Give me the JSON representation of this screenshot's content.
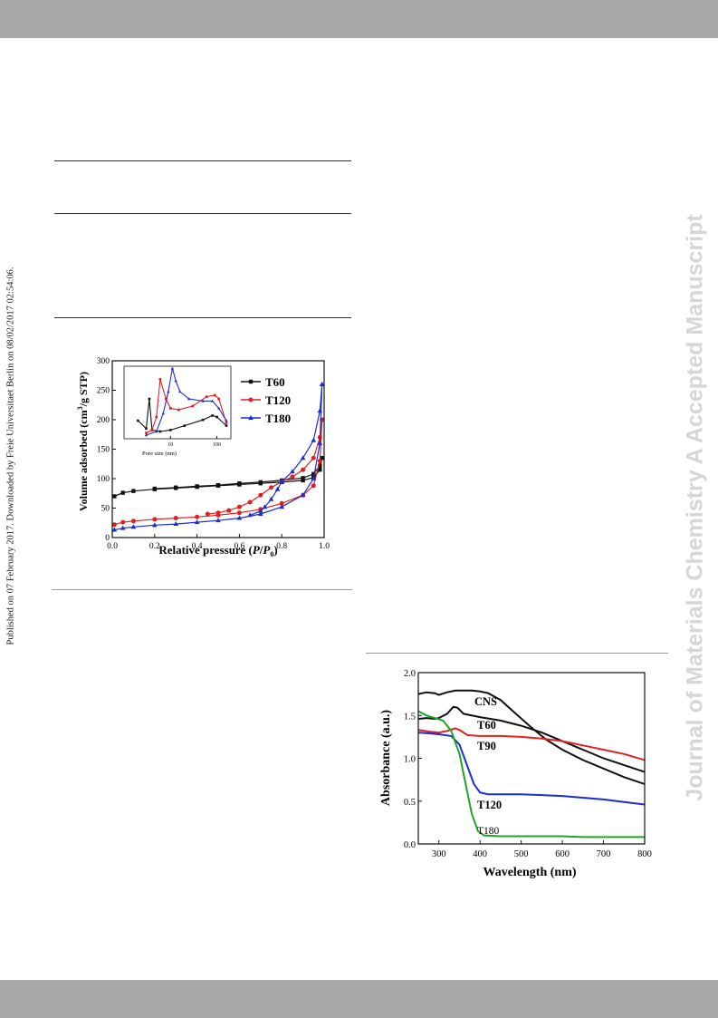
{
  "page": {
    "watermark": "Journal of Materials Chemistry A Accepted Manuscript",
    "side_note": "Published on 07 February 2017. Downloaded by Freie Universitaet Berlin on 08/02/2017 02:54:06."
  },
  "chart_data": [
    {
      "type": "line",
      "xlabel": "Relative pressure (P/P0)",
      "ylabel": "Volume adsorbed (cm3/g STP)",
      "xlim": [
        0.0,
        1.0
      ],
      "ylim": [
        0,
        300
      ],
      "xticks": [
        "0.0",
        "0.2",
        "0.4",
        "0.6",
        "0.8",
        "1.0"
      ],
      "yticks": [
        "0",
        "50",
        "100",
        "150",
        "200",
        "250",
        "300"
      ],
      "legend_position": "top-right",
      "colors": {
        "T60": "#111111",
        "T120": "#e02020",
        "T180": "#1a2ed0"
      },
      "series": [
        {
          "name": "T60",
          "marker": "square",
          "adsorption": [
            [
              0.01,
              70
            ],
            [
              0.05,
              76
            ],
            [
              0.1,
              79
            ],
            [
              0.2,
              82
            ],
            [
              0.3,
              84
            ],
            [
              0.4,
              86
            ],
            [
              0.5,
              88
            ],
            [
              0.6,
              90
            ],
            [
              0.7,
              92
            ],
            [
              0.8,
              94
            ],
            [
              0.9,
              97
            ],
            [
              0.95,
              102
            ],
            [
              0.98,
              115
            ],
            [
              0.99,
              135
            ]
          ],
          "desorption": [
            [
              0.99,
              135
            ],
            [
              0.98,
              122
            ],
            [
              0.95,
              108
            ],
            [
              0.9,
              101
            ],
            [
              0.8,
              97
            ],
            [
              0.7,
              94
            ],
            [
              0.6,
              92
            ],
            [
              0.5,
              89
            ],
            [
              0.4,
              87
            ],
            [
              0.3,
              85
            ],
            [
              0.2,
              83
            ]
          ]
        },
        {
          "name": "T120",
          "marker": "circle",
          "adsorption": [
            [
              0.01,
              22
            ],
            [
              0.05,
              26
            ],
            [
              0.1,
              28
            ],
            [
              0.2,
              31
            ],
            [
              0.3,
              33
            ],
            [
              0.4,
              35
            ],
            [
              0.5,
              38
            ],
            [
              0.6,
              42
            ],
            [
              0.7,
              48
            ],
            [
              0.8,
              58
            ],
            [
              0.9,
              72
            ],
            [
              0.95,
              88
            ],
            [
              0.98,
              130
            ],
            [
              0.99,
              200
            ]
          ],
          "desorption": [
            [
              0.99,
              200
            ],
            [
              0.98,
              170
            ],
            [
              0.95,
              135
            ],
            [
              0.9,
              115
            ],
            [
              0.85,
              103
            ],
            [
              0.8,
              95
            ],
            [
              0.75,
              85
            ],
            [
              0.7,
              72
            ],
            [
              0.65,
              60
            ],
            [
              0.6,
              52
            ],
            [
              0.55,
              46
            ],
            [
              0.5,
              42
            ],
            [
              0.45,
              40
            ]
          ]
        },
        {
          "name": "T180",
          "marker": "triangle",
          "adsorption": [
            [
              0.01,
              13
            ],
            [
              0.05,
              16
            ],
            [
              0.1,
              18
            ],
            [
              0.2,
              21
            ],
            [
              0.3,
              23
            ],
            [
              0.4,
              26
            ],
            [
              0.5,
              29
            ],
            [
              0.6,
              33
            ],
            [
              0.7,
              40
            ],
            [
              0.8,
              52
            ],
            [
              0.9,
              72
            ],
            [
              0.95,
              100
            ],
            [
              0.98,
              160
            ],
            [
              0.99,
              260
            ]
          ],
          "desorption": [
            [
              0.99,
              260
            ],
            [
              0.98,
              215
            ],
            [
              0.95,
              165
            ],
            [
              0.9,
              135
            ],
            [
              0.85,
              112
            ],
            [
              0.8,
              95
            ],
            [
              0.78,
              82
            ],
            [
              0.75,
              65
            ],
            [
              0.72,
              52
            ],
            [
              0.7,
              45
            ],
            [
              0.65,
              38
            ]
          ]
        }
      ],
      "inset": {
        "xlabel": "Pore size (nm)",
        "xscale": "log",
        "xlim": [
          1,
          200
        ],
        "xticks": [
          "10",
          "100"
        ],
        "series": [
          {
            "name": "T60",
            "points": [
              [
                2,
                0.25
              ],
              [
                3,
                0.14
              ],
              [
                3.5,
                0.55
              ],
              [
                4,
                0.12
              ],
              [
                6,
                0.1
              ],
              [
                10,
                0.12
              ],
              [
                20,
                0.18
              ],
              [
                50,
                0.26
              ],
              [
                80,
                0.32
              ],
              [
                100,
                0.3
              ],
              [
                160,
                0.18
              ]
            ]
          },
          {
            "name": "T120",
            "points": [
              [
                3,
                0.08
              ],
              [
                4,
                0.12
              ],
              [
                5,
                0.3
              ],
              [
                6,
                0.82
              ],
              [
                8,
                0.55
              ],
              [
                10,
                0.42
              ],
              [
                15,
                0.4
              ],
              [
                30,
                0.45
              ],
              [
                60,
                0.58
              ],
              [
                90,
                0.6
              ],
              [
                110,
                0.55
              ],
              [
                160,
                0.22
              ]
            ]
          },
          {
            "name": "T180",
            "points": [
              [
                3,
                0.05
              ],
              [
                5,
                0.1
              ],
              [
                7,
                0.35
              ],
              [
                9,
                0.65
              ],
              [
                11,
                0.97
              ],
              [
                13,
                0.8
              ],
              [
                16,
                0.65
              ],
              [
                25,
                0.55
              ],
              [
                50,
                0.52
              ],
              [
                80,
                0.52
              ],
              [
                110,
                0.42
              ],
              [
                160,
                0.25
              ]
            ]
          }
        ]
      }
    },
    {
      "type": "line",
      "xlabel": "Wavelength (nm)",
      "ylabel": "Absorbance (a.u.)",
      "xlim": [
        250,
        800
      ],
      "ylim": [
        0.0,
        2.0
      ],
      "xticks": [
        "300",
        "400",
        "500",
        "600",
        "700",
        "800"
      ],
      "yticks": [
        "0.0",
        "0.5",
        "1.0",
        "1.5",
        "2.0"
      ],
      "series": [
        {
          "name": "CNS",
          "color": "#111111",
          "points": [
            [
              250,
              1.75
            ],
            [
              270,
              1.77
            ],
            [
              290,
              1.76
            ],
            [
              300,
              1.74
            ],
            [
              320,
              1.77
            ],
            [
              340,
              1.79
            ],
            [
              360,
              1.79
            ],
            [
              380,
              1.79
            ],
            [
              400,
              1.78
            ],
            [
              420,
              1.76
            ],
            [
              450,
              1.68
            ],
            [
              480,
              1.55
            ],
            [
              520,
              1.38
            ],
            [
              560,
              1.22
            ],
            [
              600,
              1.1
            ],
            [
              650,
              0.98
            ],
            [
              700,
              0.88
            ],
            [
              750,
              0.78
            ],
            [
              800,
              0.7
            ]
          ]
        },
        {
          "name": "T60",
          "color": "#111111",
          "points": [
            [
              250,
              1.46
            ],
            [
              270,
              1.47
            ],
            [
              290,
              1.46
            ],
            [
              300,
              1.47
            ],
            [
              320,
              1.52
            ],
            [
              335,
              1.6
            ],
            [
              345,
              1.59
            ],
            [
              360,
              1.52
            ],
            [
              400,
              1.48
            ],
            [
              450,
              1.44
            ],
            [
              500,
              1.38
            ],
            [
              550,
              1.3
            ],
            [
              600,
              1.2
            ],
            [
              650,
              1.1
            ],
            [
              700,
              1.0
            ],
            [
              750,
              0.92
            ],
            [
              800,
              0.84
            ]
          ]
        },
        {
          "name": "T90",
          "color": "#e02020",
          "points": [
            [
              250,
              1.33
            ],
            [
              280,
              1.31
            ],
            [
              300,
              1.3
            ],
            [
              320,
              1.32
            ],
            [
              340,
              1.35
            ],
            [
              350,
              1.33
            ],
            [
              370,
              1.27
            ],
            [
              400,
              1.26
            ],
            [
              450,
              1.26
            ],
            [
              500,
              1.25
            ],
            [
              550,
              1.23
            ],
            [
              600,
              1.2
            ],
            [
              650,
              1.15
            ],
            [
              700,
              1.1
            ],
            [
              750,
              1.05
            ],
            [
              800,
              0.98
            ]
          ]
        },
        {
          "name": "T120",
          "color": "#1a2ed0",
          "points": [
            [
              250,
              1.3
            ],
            [
              280,
              1.29
            ],
            [
              300,
              1.28
            ],
            [
              330,
              1.26
            ],
            [
              350,
              1.16
            ],
            [
              370,
              0.9
            ],
            [
              385,
              0.7
            ],
            [
              400,
              0.6
            ],
            [
              420,
              0.58
            ],
            [
              450,
              0.58
            ],
            [
              500,
              0.58
            ],
            [
              550,
              0.57
            ],
            [
              600,
              0.56
            ],
            [
              650,
              0.54
            ],
            [
              700,
              0.52
            ],
            [
              750,
              0.49
            ],
            [
              800,
              0.46
            ]
          ]
        },
        {
          "name": "T180",
          "color": "#1fa32a",
          "points": [
            [
              250,
              1.55
            ],
            [
              270,
              1.5
            ],
            [
              290,
              1.47
            ],
            [
              310,
              1.44
            ],
            [
              330,
              1.32
            ],
            [
              350,
              1.05
            ],
            [
              365,
              0.7
            ],
            [
              380,
              0.35
            ],
            [
              395,
              0.15
            ],
            [
              410,
              0.1
            ],
            [
              450,
              0.09
            ],
            [
              500,
              0.09
            ],
            [
              550,
              0.09
            ],
            [
              600,
              0.09
            ],
            [
              650,
              0.08
            ],
            [
              700,
              0.08
            ],
            [
              750,
              0.08
            ],
            [
              800,
              0.08
            ]
          ]
        }
      ]
    }
  ]
}
